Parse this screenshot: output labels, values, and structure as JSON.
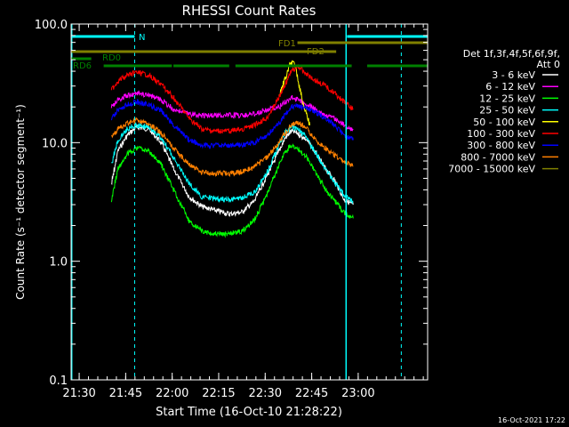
{
  "chart_data": {
    "type": "line",
    "title": "RHESSI Count Rates",
    "xlabel": "Start Time (16-Oct-10 21:28:22)",
    "ylabel": "Count Rate (s⁻¹ detector segment⁻¹)",
    "yscale": "log",
    "ylim": [
      0.1,
      100.0
    ],
    "xlim_minutes_after_start": [
      -1,
      114
    ],
    "x_ticks": [
      {
        "label": "21:30",
        "minute": 1.6
      },
      {
        "label": "21:45",
        "minute": 16.6
      },
      {
        "label": "22:00",
        "minute": 31.6
      },
      {
        "label": "22:15",
        "minute": 46.6
      },
      {
        "label": "22:30",
        "minute": 61.6
      },
      {
        "label": "22:45",
        "minute": 76.6
      },
      {
        "label": "23:00",
        "minute": 91.6
      }
    ],
    "y_ticks": [
      "0.1",
      "1.0",
      "10.0",
      "100.0"
    ],
    "legend_header": [
      "Det 1f,3f,4f,5f,6f,9f,",
      "Att 0"
    ],
    "legend_position": "right",
    "timestamp": "16-Oct-2021 17:22",
    "colors": {
      "background": "#000000",
      "axes": "#ffffff",
      "night_lines": "#00ffff",
      "flare_bars": "#808000",
      "saa_bars": "#008000"
    },
    "orbit_markers": {
      "night_label": "N",
      "night_intervals": [
        [
          -1,
          19.5
        ],
        [
          88,
          114
        ]
      ],
      "night_solid_lines": [
        -0.8,
        87.7
      ],
      "night_dashed_lines": [
        19.5,
        105.5
      ],
      "flare_labels": [
        "FD1",
        "FD2"
      ],
      "flare_intervals": [
        [
          -1,
          84.5
        ],
        [
          72,
          114
        ]
      ],
      "saa_labels": [
        "RD0",
        "RD6"
      ],
      "saa_intervals": [
        [
          -1,
          5.5
        ],
        [
          9.5,
          31.5
        ],
        [
          32,
          50
        ],
        [
          52,
          89.5
        ],
        [
          94.5,
          114
        ]
      ]
    },
    "series": [
      {
        "name": "3 - 6 keV",
        "color": "#ffffff",
        "x": [
          12,
          14,
          17,
          20,
          24,
          28,
          32,
          37,
          41,
          45,
          50,
          54,
          58,
          62,
          66,
          68,
          70,
          72,
          75,
          78,
          81,
          84,
          87,
          90
        ],
        "y": [
          4.5,
          8.5,
          11.5,
          13.5,
          13,
          10,
          6,
          3.5,
          2.9,
          2.7,
          2.5,
          2.6,
          3.2,
          5.2,
          8.5,
          11,
          12.5,
          12,
          10.5,
          8,
          6,
          4.8,
          3.3,
          3
        ]
      },
      {
        "name": "6 - 12 keV",
        "color": "#ff00ff",
        "x": [
          12,
          14,
          17,
          20,
          24,
          28,
          32,
          37,
          41,
          45,
          50,
          54,
          58,
          62,
          66,
          68,
          70,
          72,
          75,
          78,
          81,
          84,
          87,
          90
        ],
        "y": [
          20,
          23,
          25,
          26,
          25,
          23,
          19,
          17.5,
          17,
          17,
          17,
          17,
          17.5,
          19,
          20,
          22,
          24,
          23,
          21,
          19,
          17,
          16,
          14,
          13
        ]
      },
      {
        "name": "12 - 25 keV",
        "color": "#00ff00",
        "x": [
          12,
          14,
          17,
          20,
          24,
          28,
          32,
          37,
          41,
          45,
          50,
          54,
          58,
          62,
          66,
          68,
          70,
          72,
          75,
          78,
          81,
          84,
          87,
          90
        ],
        "y": [
          3.3,
          6,
          8,
          9,
          8.5,
          6.5,
          4,
          2.2,
          1.8,
          1.7,
          1.7,
          1.8,
          2.2,
          3.6,
          6.5,
          8.5,
          9.5,
          9,
          7.5,
          5.5,
          4,
          3.2,
          2.6,
          2.3
        ]
      },
      {
        "name": "25 - 50 keV",
        "color": "#00ffff",
        "x": [
          12,
          14,
          17,
          20,
          24,
          28,
          32,
          37,
          41,
          45,
          50,
          54,
          58,
          62,
          66,
          68,
          70,
          72,
          75,
          78,
          81,
          84,
          87,
          90
        ],
        "y": [
          6.5,
          10.5,
          13,
          14,
          13.5,
          11,
          7.5,
          4.5,
          3.5,
          3.4,
          3.3,
          3.4,
          3.8,
          5.5,
          9.5,
          12,
          13.5,
          13,
          11,
          8,
          6,
          4.6,
          3.6,
          3.2
        ]
      },
      {
        "name": "50 - 100 keV",
        "color": "#ffff00",
        "x": [
          66,
          68,
          69.5,
          70.5,
          71.5,
          72.5,
          74,
          76
        ],
        "y": [
          25,
          35,
          45,
          48,
          42,
          30,
          20,
          14
        ]
      },
      {
        "name": "100 - 300 keV",
        "color": "#ff0000",
        "x": [
          12,
          14,
          17,
          20,
          24,
          28,
          32,
          37,
          41,
          45,
          50,
          54,
          58,
          62,
          66,
          68,
          70,
          72,
          75,
          78,
          81,
          84,
          87,
          90
        ],
        "y": [
          28,
          33,
          37,
          39,
          37,
          31,
          24,
          16,
          13,
          12.5,
          12.5,
          13,
          14,
          16,
          24,
          31,
          40,
          44,
          38,
          33,
          30,
          26,
          22,
          19
        ]
      },
      {
        "name": "300 - 800 keV",
        "color": "#0000ff",
        "x": [
          12,
          14,
          17,
          20,
          24,
          28,
          32,
          37,
          41,
          45,
          50,
          54,
          58,
          62,
          66,
          68,
          70,
          72,
          75,
          78,
          81,
          84,
          87,
          90
        ],
        "y": [
          16,
          19,
          21,
          22,
          21,
          18.5,
          14,
          10.5,
          9.5,
          9.5,
          9.5,
          9.5,
          10,
          11.5,
          14.5,
          17.5,
          20,
          20.5,
          19.5,
          18,
          16,
          14,
          11.5,
          10.5
        ]
      },
      {
        "name": "800 - 7000 keV",
        "color": "#ff8000",
        "x": [
          12,
          14,
          17,
          20,
          24,
          28,
          32,
          37,
          41,
          45,
          50,
          54,
          58,
          62,
          66,
          68,
          70,
          72,
          75,
          78,
          81,
          84,
          87,
          90
        ],
        "y": [
          11,
          13,
          14.5,
          15.5,
          14.5,
          12,
          9,
          6.5,
          5.6,
          5.5,
          5.5,
          5.7,
          6.2,
          7.5,
          10,
          12,
          14,
          15,
          13,
          10.5,
          9,
          7.8,
          7,
          6.3
        ]
      },
      {
        "name": "7000 - 15000 keV",
        "color": "#808000",
        "x": [],
        "y": []
      }
    ]
  }
}
